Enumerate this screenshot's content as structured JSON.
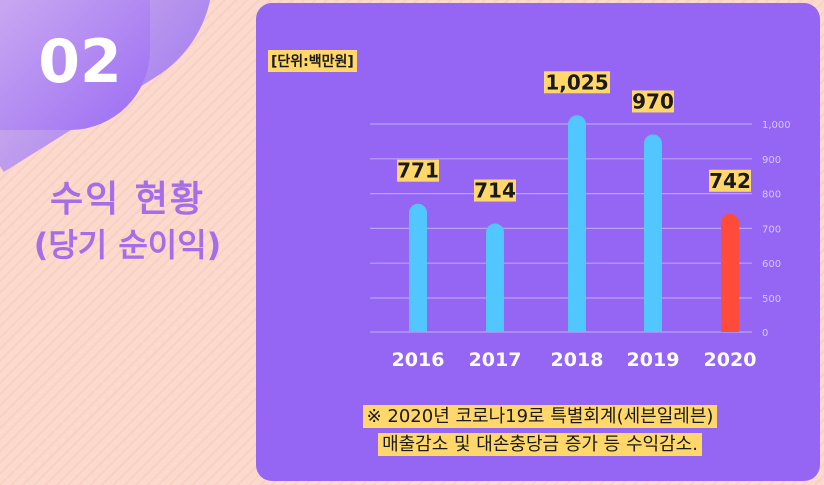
{
  "badge": {
    "number": "02"
  },
  "heading": {
    "line1": "수익  현황",
    "line2": "(당기 순이익)"
  },
  "unit": "[단위:백만원]",
  "note": {
    "line1": "※ 2020년  코로나19로 특별회계(세븐일레븐)",
    "line2": "매출감소 및 대손충당금 증가 등 수익감소."
  },
  "chart_data": {
    "type": "bar",
    "categories": [
      "2016",
      "2017",
      "2018",
      "2019",
      "2020"
    ],
    "values": [
      771,
      714,
      1025,
      970,
      742
    ],
    "data_labels": [
      "771",
      "714",
      "1,025",
      "970",
      "742"
    ],
    "y_ticks": [
      0,
      500,
      600,
      700,
      800,
      900,
      1000
    ],
    "y_tick_labels": [
      "0",
      "500",
      "600",
      "700",
      "800",
      "900",
      "1,000"
    ],
    "y_axis_position": "right",
    "grid": true,
    "colors": {
      "default": "#52c6ff",
      "highlight": "#ff4b3a",
      "label_bg": "#ffd76b"
    },
    "highlight_index": 4
  }
}
